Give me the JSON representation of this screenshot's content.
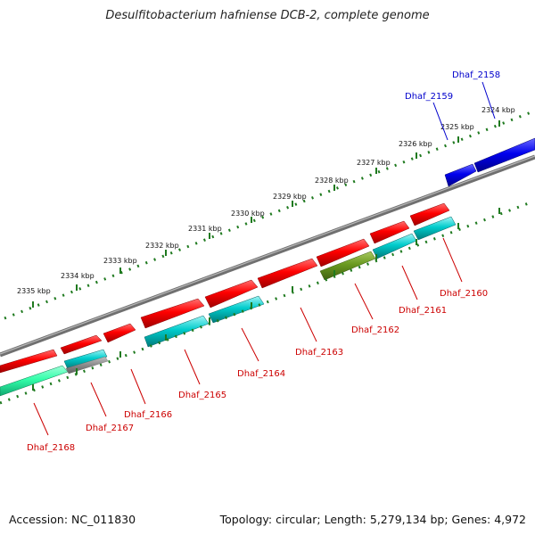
{
  "title": "Desulfitobacterium hafniense DCB-2, complete genome",
  "footer": {
    "accession": "Accession: NC_011830",
    "summary": "Topology: circular; Length: 5,279,134 bp; Genes: 4,972"
  },
  "colors": {
    "backbone": "#808080",
    "tick": "#1f7a1f",
    "forward_cds": "#ff0000",
    "reverse_cds": "#00cccc",
    "reverse_cds_alt": "#5a8c1a",
    "selected_gene": "#0000ff",
    "rna_gene": "#33ffaa",
    "label_default": "#cc0000",
    "label_selected": "#0000cc"
  },
  "scale_labels": [
    "2324 kbp",
    "2325 kbp",
    "2326 kbp",
    "2327 kbp",
    "2328 kbp",
    "2329 kbp",
    "2330 kbp",
    "2331 kbp",
    "2332 kbp",
    "2333 kbp",
    "2334 kbp",
    "2335 kbp"
  ],
  "gene_labels": [
    {
      "text": "Dhaf_2158",
      "color": "blue"
    },
    {
      "text": "Dhaf_2159",
      "color": "blue"
    },
    {
      "text": "Dhaf_2160",
      "color": "red"
    },
    {
      "text": "Dhaf_2161",
      "color": "red"
    },
    {
      "text": "Dhaf_2162",
      "color": "red"
    },
    {
      "text": "Dhaf_2163",
      "color": "red"
    },
    {
      "text": "Dhaf_2164",
      "color": "red"
    },
    {
      "text": "Dhaf_2165",
      "color": "red"
    },
    {
      "text": "Dhaf_2166",
      "color": "red"
    },
    {
      "text": "Dhaf_2167",
      "color": "red"
    },
    {
      "text": "Dhaf_2168",
      "color": "red"
    }
  ]
}
